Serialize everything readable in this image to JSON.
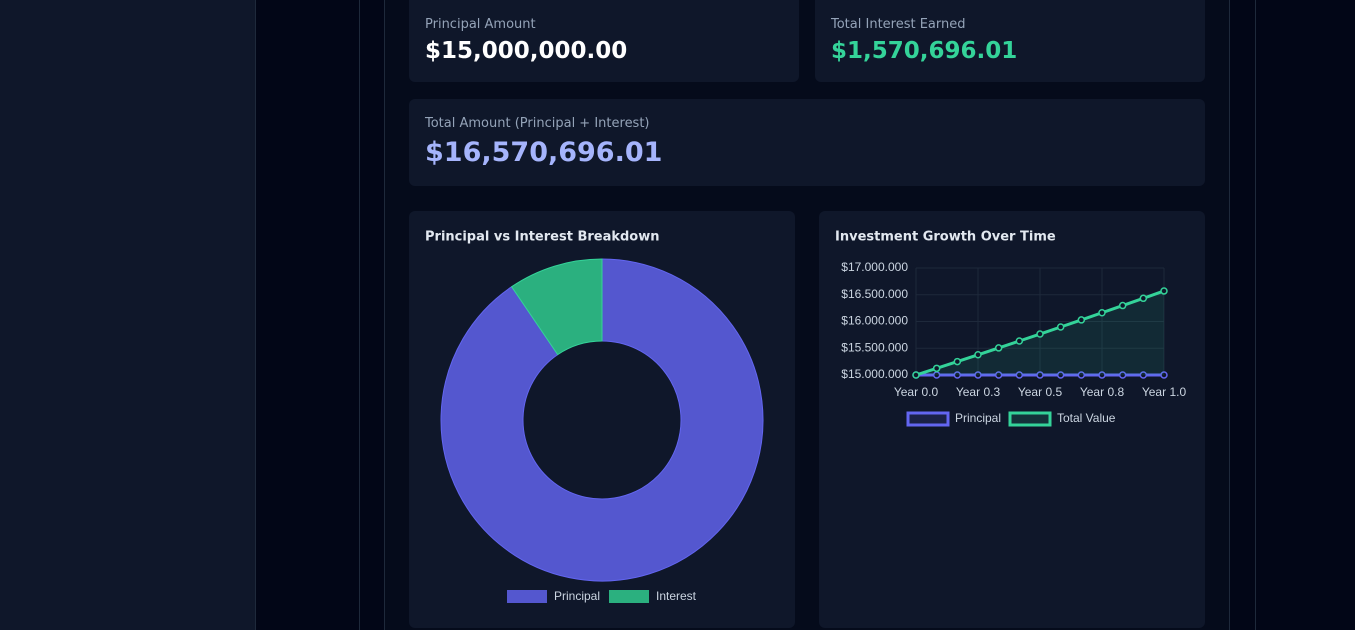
{
  "cards": [
    {
      "label": "Principal Amount",
      "value": "$15,000,000.00"
    },
    {
      "label": "Total Interest Earned",
      "value": "$1,570,696.01"
    },
    {
      "label": "Total Amount (Principal + Interest)",
      "value": "$16,570,696.01"
    }
  ],
  "chart_data": [
    {
      "type": "doughnut",
      "title": "Principal vs Interest Breakdown",
      "categories": [
        "Principal",
        "Interest"
      ],
      "values": [
        15000000,
        1570696.01
      ],
      "colors": [
        "#5457cf",
        "#2bb07f"
      ],
      "legend": "bottom"
    },
    {
      "type": "line",
      "title": "Investment Growth Over Time",
      "categories": [
        "Year 0.0",
        null,
        null,
        "Year 0.3",
        null,
        null,
        "Year 0.5",
        null,
        null,
        "Year 0.8",
        null,
        null,
        "Year 1.0"
      ],
      "series": [
        {
          "name": "Principal",
          "color": "#6366f1",
          "values": [
            15000000,
            15000000,
            15000000,
            15000000,
            15000000,
            15000000,
            15000000,
            15000000,
            15000000,
            15000000,
            15000000,
            15000000,
            15000000
          ]
        },
        {
          "name": "Total Value",
          "color": "#34d399",
          "values": [
            15000000,
            15125000,
            15251042,
            15378134,
            15506285,
            15635504,
            15765800,
            15897182,
            16029658,
            16163239,
            16297933,
            16433749,
            16570696
          ],
          "fill": true
        }
      ],
      "ylim": [
        15000000,
        17000000
      ],
      "yticks": [
        {
          "value": 15000000,
          "label": "$15.000.000"
        },
        {
          "value": 15500000,
          "label": "$15.500.000"
        },
        {
          "value": 16000000,
          "label": "$16.000.000"
        },
        {
          "value": 16500000,
          "label": "$16.500.000"
        },
        {
          "value": 17000000,
          "label": "$17.000.000"
        }
      ],
      "grid": true,
      "legend": "top"
    }
  ]
}
